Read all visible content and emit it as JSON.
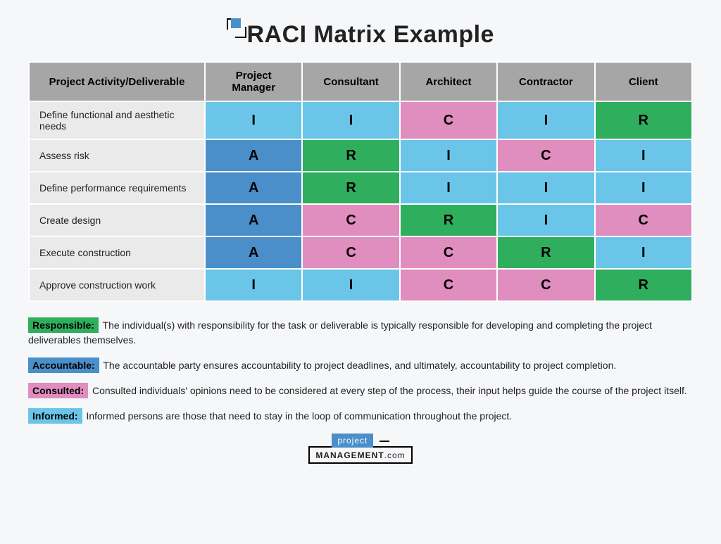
{
  "title": "RACI Matrix Example",
  "colors": {
    "R": "#2fae5e",
    "A": "#4a8fc9",
    "C": "#e08dc0",
    "I": "#6ac5e8",
    "header_bg": "#a6a6a6",
    "activity_bg": "#eaeaea",
    "page_bg": "#f6f7f9"
  },
  "table": {
    "columns": [
      "Project Activity/Deliverable",
      "Project Manager",
      "Consultant",
      "Architect",
      "Contractor",
      "Client"
    ],
    "rows": [
      {
        "activity": "Define functional and aesthetic needs",
        "cells": [
          "I",
          "I",
          "C",
          "I",
          "R"
        ]
      },
      {
        "activity": "Assess risk",
        "cells": [
          "A",
          "R",
          "I",
          "C",
          "I"
        ]
      },
      {
        "activity": "Define performance requirements",
        "cells": [
          "A",
          "R",
          "I",
          "I",
          "I"
        ]
      },
      {
        "activity": "Create design",
        "cells": [
          "A",
          "C",
          "R",
          "I",
          "C"
        ]
      },
      {
        "activity": "Execute construction",
        "cells": [
          "A",
          "C",
          "C",
          "R",
          "I"
        ]
      },
      {
        "activity": "Approve construction work",
        "cells": [
          "I",
          "I",
          "C",
          "C",
          "R"
        ]
      }
    ]
  },
  "legend": [
    {
      "key": "R",
      "label": "Responsible:",
      "text": "The individual(s) with responsibility for the task or deliverable is typically responsible for developing and completing the project deliverables themselves."
    },
    {
      "key": "A",
      "label": "Accountable:",
      "text": "The accountable party ensures accountability to project deadlines, and ultimately, accountability to project completion."
    },
    {
      "key": "C",
      "label": "Consulted:",
      "text": "Consulted individuals' opinions need to be considered at every step of the process, their input helps guide the course of the project itself."
    },
    {
      "key": "I",
      "label": "Informed:",
      "text": "Informed persons are those that need to stay in the loop of communication throughout the project."
    }
  ],
  "footer": {
    "top": "project",
    "bottom_bold": "MANAGEMENT",
    "bottom_light": ".com"
  }
}
